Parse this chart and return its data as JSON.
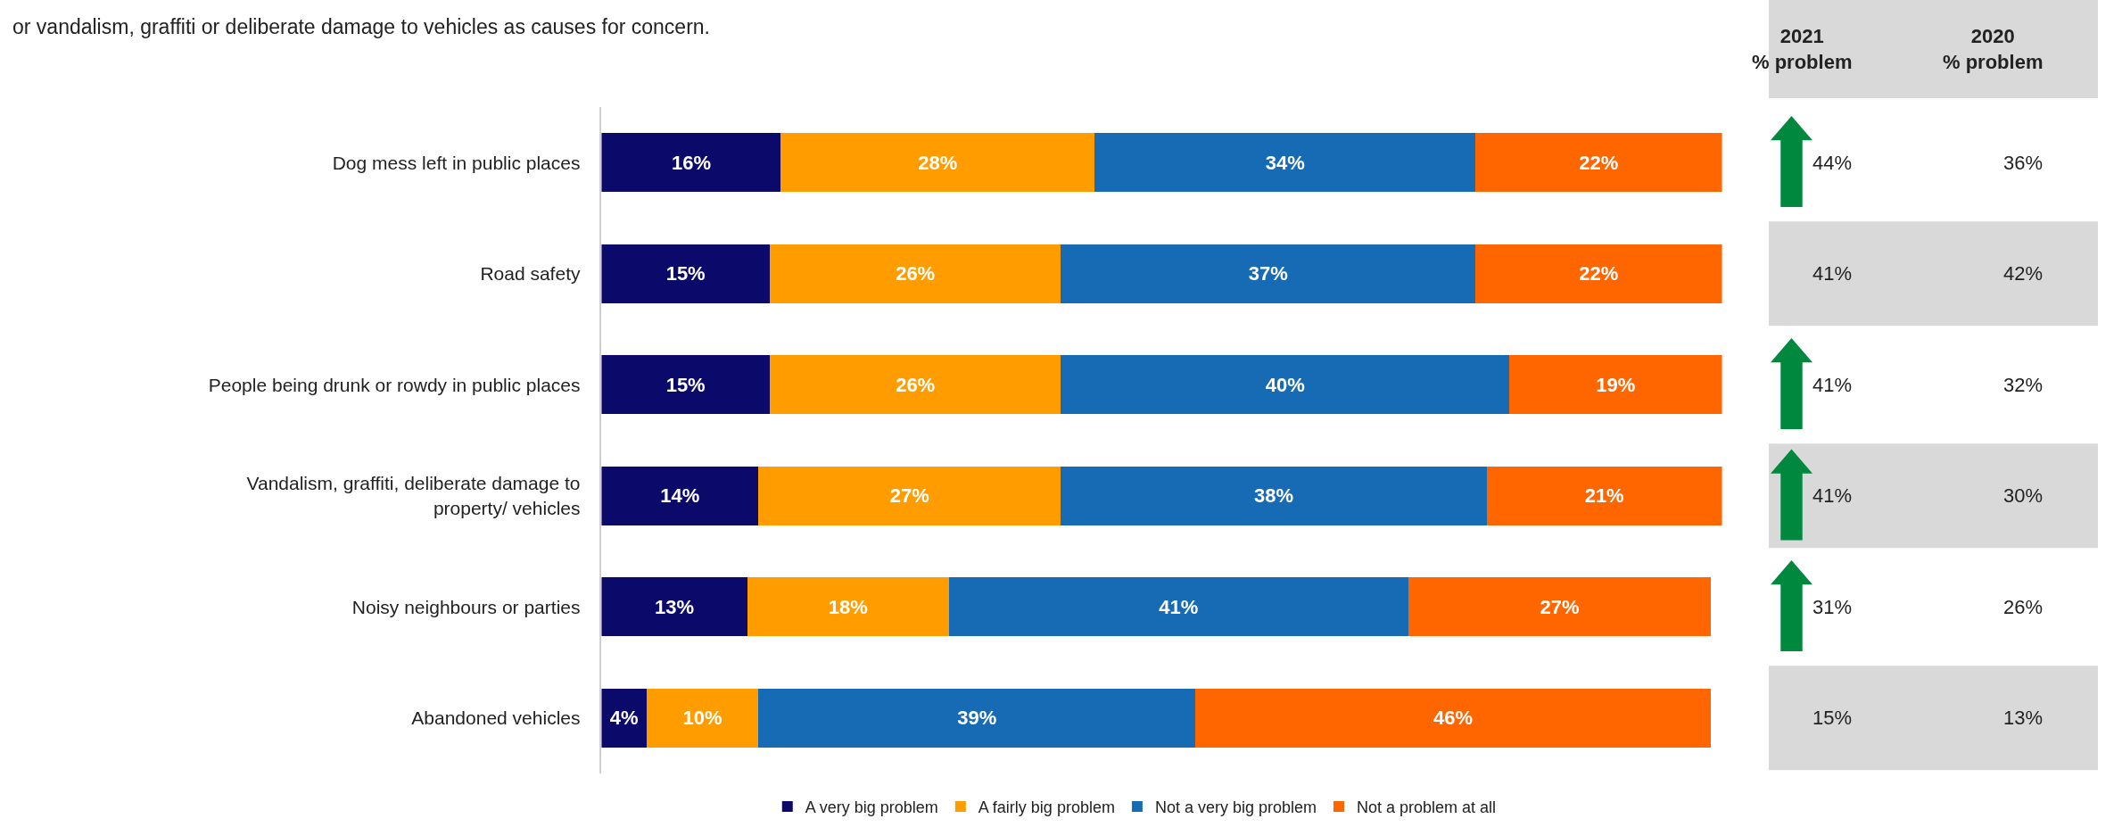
{
  "chart_data": {
    "type": "bar",
    "orientation": "horizontal",
    "stacked": true,
    "legend": "bottom",
    "categories": [
      "Dog mess left in public places",
      "Road safety",
      "People being drunk or rowdy in public places",
      "Vandalism, graffiti, deliberate damage to\nproperty/ vehicles",
      "Noisy neighbours or parties",
      "Abandoned vehicles"
    ],
    "series": [
      {
        "name": "A very big problem",
        "color": "#0b0a6a",
        "values": [
          16,
          15,
          15,
          14,
          13,
          4
        ],
        "value_labels": [
          "16%",
          "15%",
          "15%",
          "14%",
          "13%",
          "4%"
        ]
      },
      {
        "name": "A fairly big problem",
        "color": "#ff9d00",
        "values": [
          28,
          26,
          26,
          27,
          18,
          10
        ],
        "value_labels": [
          "28%",
          "26%",
          "26%",
          "27%",
          "18%",
          "10%"
        ]
      },
      {
        "name": "Not a very big problem",
        "color": "#176bb5",
        "values": [
          34,
          37,
          40,
          38,
          41,
          39
        ],
        "value_labels": [
          "34%",
          "37%",
          "40%",
          "38%",
          "41%",
          "39%"
        ]
      },
      {
        "name": "Not a problem at all",
        "color": "#ff6600",
        "values": [
          22,
          22,
          19,
          21,
          27,
          46
        ],
        "value_labels": [
          "22%",
          "22%",
          "19%",
          "21%",
          "27%",
          "46%"
        ]
      }
    ],
    "annotations": [
      "or vandalism, graffiti or deliberate damage to vehicles as causes for concern.",
      "2021\n% problem",
      "2020\n% problem",
      "44%",
      "36%",
      "41%",
      "42%",
      "41%",
      "32%",
      "41%",
      "30%",
      "31%",
      "26%",
      "15%",
      "13%"
    ]
  }
}
